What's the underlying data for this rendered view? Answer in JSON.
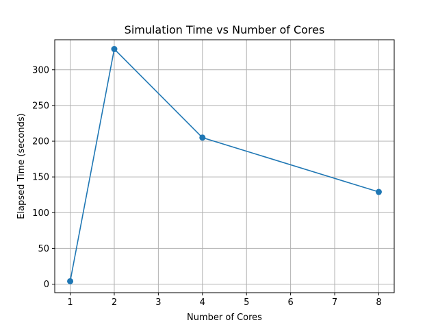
{
  "chart_data": {
    "type": "line",
    "title": "Simulation Time vs Number of Cores",
    "xlabel": "Number of Cores",
    "ylabel": "Elapsed Time (seconds)",
    "xlim": [
      0.65,
      8.35
    ],
    "ylim": [
      -12,
      342
    ],
    "xticks": [
      1,
      2,
      3,
      4,
      5,
      6,
      7,
      8
    ],
    "yticks": [
      0,
      50,
      100,
      150,
      200,
      250,
      300
    ],
    "grid": true,
    "series": [
      {
        "color": "#1f77b4",
        "marker": "circle",
        "points": [
          {
            "x": 1,
            "y": 4
          },
          {
            "x": 2,
            "y": 329
          },
          {
            "x": 4,
            "y": 205
          },
          {
            "x": 8,
            "y": 129
          }
        ]
      }
    ]
  }
}
